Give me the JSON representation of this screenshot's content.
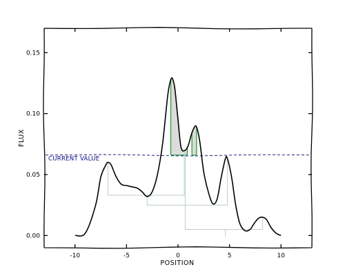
{
  "chart_data": {
    "type": "line",
    "title": "",
    "xlabel": "POSITION",
    "ylabel": "FLUX",
    "xlim": [
      -13,
      13
    ],
    "ylim": [
      -0.01,
      0.17
    ],
    "x_ticks": [
      -10,
      -5,
      0,
      5,
      10
    ],
    "x_tick_labels": [
      "-10",
      "-5",
      "0",
      "5",
      "10"
    ],
    "y_ticks": [
      0.0,
      0.05,
      0.1,
      0.15
    ],
    "y_tick_labels": [
      "0.00",
      "0.05",
      "0.10",
      "0.15"
    ],
    "grid": false,
    "series": [
      {
        "color": "#000000",
        "x": [
          -10,
          -9,
          -8,
          -7.5,
          -7,
          -6.8,
          -6.5,
          -6,
          -5.5,
          -5,
          -4.5,
          -4,
          -3.5,
          -3,
          -2.5,
          -2,
          -1.5,
          -1,
          -0.7,
          -0.5,
          -0.3,
          0,
          0.3,
          0.7,
          1,
          1.3,
          1.6,
          1.8,
          2.1,
          2.5,
          3,
          3.4,
          3.8,
          4.2,
          4.6,
          4.8,
          5.2,
          5.6,
          6,
          6.5,
          7,
          7.4,
          7.8,
          8.2,
          8.6,
          9,
          9.5,
          10
        ],
        "y": [
          0.0,
          0.002,
          0.025,
          0.048,
          0.058,
          0.06,
          0.058,
          0.048,
          0.042,
          0.041,
          0.04,
          0.039,
          0.036,
          0.032,
          0.036,
          0.05,
          0.075,
          0.115,
          0.128,
          0.128,
          0.12,
          0.095,
          0.072,
          0.07,
          0.074,
          0.083,
          0.089,
          0.089,
          0.078,
          0.052,
          0.034,
          0.026,
          0.03,
          0.048,
          0.063,
          0.063,
          0.048,
          0.025,
          0.01,
          0.004,
          0.005,
          0.01,
          0.014,
          0.015,
          0.013,
          0.007,
          0.002,
          0.0
        ]
      }
    ],
    "hline": {
      "y": 0.066,
      "label": "CURRENT VALUE",
      "color": "#0000c8"
    },
    "highlight_color": "#2ca02c",
    "highlight_fill": "#dcdcdc",
    "highlight_regions": [
      [
        -0.7,
        0.9
      ],
      [
        1.35,
        1.8
      ]
    ],
    "dendrogram_color": "#b9cfd4"
  }
}
